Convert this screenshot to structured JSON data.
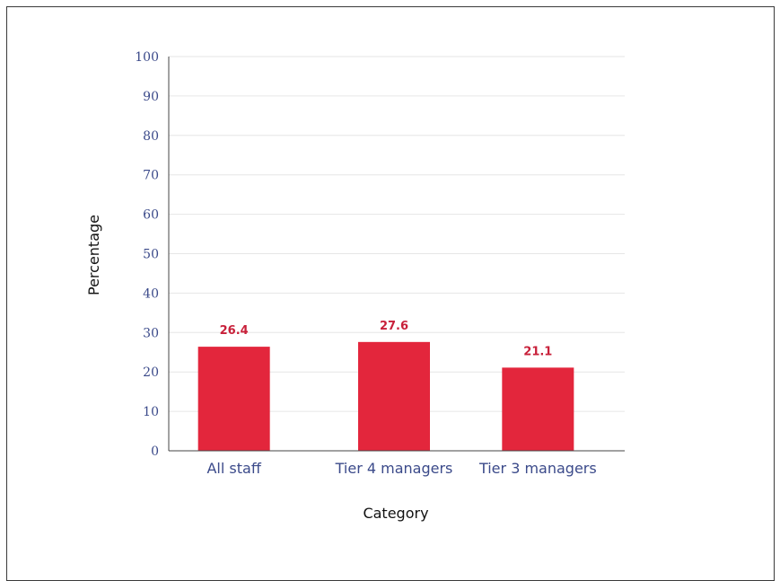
{
  "chart_data": {
    "type": "bar",
    "categories": [
      "All staff",
      "Tier 4 managers",
      "Tier 3 managers"
    ],
    "values": [
      26.4,
      27.6,
      21.1
    ],
    "value_labels": [
      "26.4",
      "27.6",
      "21.1"
    ],
    "title": "",
    "xlabel": "Category",
    "ylabel": "Percentage",
    "ylim": [
      0,
      100
    ],
    "yticks": [
      0,
      10,
      20,
      30,
      40,
      50,
      60,
      70,
      80,
      90,
      100
    ],
    "grid": true,
    "legend": "none",
    "colors": {
      "bar": "#e3263c",
      "value_label": "#c8203a",
      "tick_label": "#3b4a8a",
      "gridline": "#e6e6e6",
      "axis": "#444444"
    }
  }
}
